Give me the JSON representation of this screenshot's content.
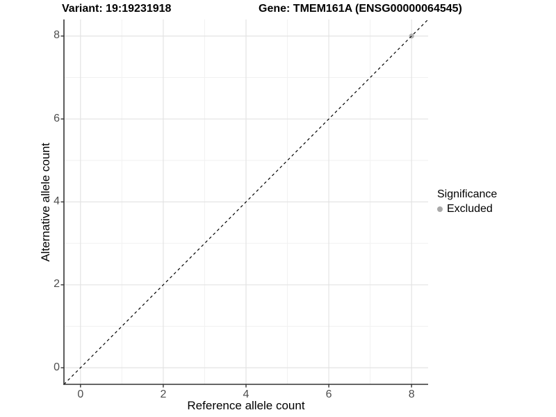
{
  "header": {
    "variant_title": "Variant: 19:19231918",
    "gene_title": "Gene: TMEM161A (ENSG00000064545)"
  },
  "axes": {
    "x_title": "Reference allele count",
    "y_title": "Alternative allele count"
  },
  "legend": {
    "title": "Significance",
    "items": [
      {
        "label": "Excluded",
        "color": "#a9a9a9"
      }
    ]
  },
  "colors": {
    "background": "#ffffff",
    "grid_major": "#e3e3e3",
    "grid_minor": "#f1f1f1",
    "axis_line": "#333333",
    "tick_mark": "#333333",
    "tick_text": "#4d4d4d",
    "title_text": "#000000",
    "reference_line": "#000000",
    "excluded_point": "#a9a9a9"
  },
  "chart_data": {
    "type": "scatter",
    "title": "Variant: 19:19231918 / Gene: TMEM161A (ENSG00000064545)",
    "xlabel": "Reference allele count",
    "ylabel": "Alternative allele count",
    "xlim": [
      -0.4,
      8.4
    ],
    "ylim": [
      -0.4,
      8.4
    ],
    "x_ticks": [
      0,
      2,
      4,
      6,
      8
    ],
    "y_ticks": [
      0,
      2,
      4,
      6,
      8
    ],
    "x_minor_ticks": [
      1,
      3,
      5,
      7
    ],
    "y_minor_ticks": [
      1,
      3,
      5,
      7
    ],
    "grid": true,
    "legend_position": "right",
    "series": [
      {
        "name": "Excluded",
        "color": "#a9a9a9",
        "points": [
          [
            8,
            8
          ]
        ]
      }
    ],
    "annotations": [
      {
        "type": "reference-line",
        "equation": "y=x",
        "style": "dashed",
        "color": "#000000"
      }
    ]
  }
}
